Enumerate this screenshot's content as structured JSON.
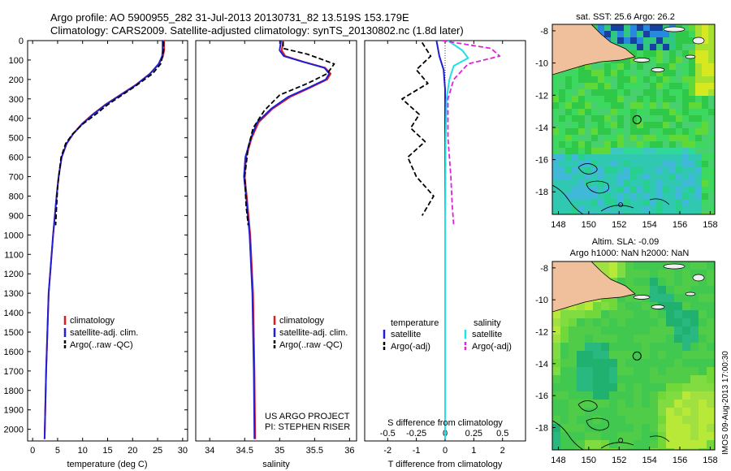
{
  "title": {
    "line1": "Argo profile: AO 5900955_282 31-Jul-2013 20130731_82 13.519S 153.179E",
    "line2": "Climatology: CARS2009. Satellite-adjusted climatology: synTS_20130802.nc (1.8d later)"
  },
  "colors": {
    "climatology": "#e41a1c",
    "satellite": "#1f1fd6",
    "argo": "#000000",
    "salinity_sat": "#22e0e6",
    "salinity_argo": "#e020e0"
  },
  "depth_axis": {
    "ticks": [
      0,
      100,
      200,
      300,
      400,
      500,
      600,
      700,
      800,
      900,
      1000,
      1100,
      1200,
      1300,
      1400,
      1500,
      1600,
      1700,
      1800,
      1900,
      2000
    ],
    "range": [
      0,
      2060
    ],
    "reversed": true
  },
  "chart_data": [
    {
      "type": "line",
      "panel": "temperature",
      "xlabel": "temperature (deg C)",
      "xlim": [
        -1,
        31
      ],
      "xticks": [
        0,
        5,
        10,
        15,
        20,
        25,
        30
      ],
      "ylim": [
        2060,
        0
      ],
      "legend": [
        "climatology",
        "satellite-adj. clim.",
        "Argo(..raw -QC)"
      ],
      "series": [
        {
          "name": "climatology",
          "x": [
            26.3,
            26.3,
            26.1,
            25.3,
            23.5,
            20.5,
            17.5,
            14.5,
            12.0,
            9.8,
            8.1,
            6.8,
            5.8,
            5.2,
            4.8,
            4.1,
            3.2,
            2.7,
            2.4
          ],
          "y": [
            0,
            50,
            80,
            120,
            170,
            230,
            280,
            330,
            380,
            430,
            480,
            530,
            600,
            700,
            800,
            1000,
            1300,
            1700,
            2050
          ]
        },
        {
          "name": "satellite-adj. clim.",
          "x": [
            26.0,
            26.0,
            25.9,
            25.2,
            23.5,
            20.6,
            17.6,
            14.6,
            12.1,
            9.9,
            8.1,
            6.8,
            5.8,
            5.2,
            4.8,
            4.1,
            3.2,
            2.7,
            2.4
          ],
          "y": [
            0,
            50,
            80,
            120,
            170,
            230,
            280,
            330,
            380,
            430,
            480,
            530,
            600,
            700,
            800,
            1000,
            1300,
            1700,
            2050
          ]
        },
        {
          "name": "Argo(..raw -QC)",
          "x": [
            26.2,
            26.2,
            26.0,
            25.6,
            24.0,
            20.8,
            17.9,
            15.0,
            12.6,
            10.0,
            8.0,
            6.6,
            5.7,
            5.0,
            4.6
          ],
          "y": [
            5,
            50,
            80,
            120,
            170,
            230,
            280,
            330,
            380,
            430,
            480,
            530,
            600,
            750,
            950
          ]
        }
      ]
    },
    {
      "type": "line",
      "panel": "salinity",
      "xlabel": "salinity",
      "xlim": [
        33.8,
        36.1
      ],
      "xticks": [
        34,
        34.5,
        35,
        35.5,
        36
      ],
      "ylim": [
        2060,
        0
      ],
      "legend": [
        "climatology",
        "satellite-adj. clim.",
        "Argo(..raw -QC)"
      ],
      "series": [
        {
          "name": "climatology",
          "x": [
            35.05,
            35.03,
            35.08,
            35.35,
            35.65,
            35.73,
            35.68,
            35.45,
            35.15,
            34.9,
            34.7,
            34.6,
            34.52,
            34.5,
            34.53,
            34.58,
            34.62,
            34.64,
            34.65
          ],
          "y": [
            0,
            50,
            80,
            110,
            140,
            170,
            200,
            240,
            290,
            350,
            420,
            500,
            600,
            700,
            800,
            1000,
            1300,
            1700,
            2050
          ]
        },
        {
          "name": "satellite-adj. clim.",
          "x": [
            35.02,
            35.0,
            35.06,
            35.34,
            35.64,
            35.71,
            35.66,
            35.43,
            35.12,
            34.88,
            34.68,
            34.59,
            34.51,
            34.49,
            34.52,
            34.57,
            34.61,
            34.63,
            34.64
          ],
          "y": [
            0,
            50,
            80,
            110,
            140,
            170,
            200,
            240,
            290,
            350,
            420,
            500,
            600,
            700,
            800,
            1000,
            1300,
            1700,
            2050
          ]
        },
        {
          "name": "Argo(..raw -QC)",
          "x": [
            35.05,
            35.05,
            35.4,
            35.55,
            35.78,
            35.68,
            35.4,
            35.0,
            34.78,
            34.62,
            34.55,
            34.5,
            34.52,
            34.55
          ],
          "y": [
            5,
            40,
            70,
            90,
            120,
            170,
            220,
            280,
            360,
            450,
            550,
            700,
            850,
            950
          ]
        }
      ]
    },
    {
      "type": "line",
      "panel": "difference",
      "xlabel": "T difference from climatology",
      "x2label": "S difference from climatology",
      "xlim": [
        -2.8,
        2.8
      ],
      "xticks": [
        -2,
        -1,
        0,
        1,
        2
      ],
      "xticks_labels": [
        "-2",
        "-1",
        "0",
        "1",
        "2"
      ],
      "x2ticks": [
        -0.5,
        -0.25,
        0,
        0.25,
        0.5
      ],
      "x2ticks_labels": [
        "-0.5",
        "-0.25",
        "0",
        "0.25",
        "0.5"
      ],
      "ylim": [
        2060,
        0
      ],
      "legend_header": [
        "temperature",
        "salinity"
      ],
      "legend": [
        "satellite",
        "Argo(-adj)",
        "satellite",
        "Argo(-adj)"
      ],
      "series": [
        {
          "name": "satellite",
          "quantity": "temperature",
          "x": [
            -0.3,
            -0.2,
            -0.05,
            0.0,
            0.0,
            0.0
          ],
          "y": [
            0,
            80,
            150,
            250,
            600,
            2050
          ]
        },
        {
          "name": "Argo(-adj)",
          "quantity": "temperature",
          "x": [
            -0.8,
            -0.5,
            -1.0,
            -0.6,
            -1.5,
            -0.9,
            -1.2,
            -0.7,
            -1.3,
            -1.0,
            -0.4,
            -0.8
          ],
          "y": [
            10,
            80,
            150,
            220,
            300,
            380,
            450,
            520,
            600,
            700,
            800,
            900
          ]
        },
        {
          "name": "satellite",
          "quantity": "salinity",
          "x": [
            0.1,
            0.6,
            0.8,
            0.3,
            0.15,
            0.05,
            0.02,
            0.0,
            0.0
          ],
          "y": [
            0,
            50,
            90,
            130,
            200,
            300,
            500,
            900,
            2050
          ]
        },
        {
          "name": "Argo(-adj)",
          "quantity": "salinity",
          "x": [
            -0.1,
            1.6,
            1.9,
            0.8,
            0.3,
            0.1,
            0.1,
            0.2,
            0.25,
            0.3
          ],
          "y": [
            0,
            40,
            80,
            120,
            200,
            300,
            500,
            700,
            850,
            950
          ]
        }
      ]
    },
    {
      "type": "heatmap",
      "panel": "map-sst",
      "title": "sat. SST: 25.6  Argo: 26.2",
      "xticks": [
        148,
        150,
        152,
        154,
        156,
        158
      ],
      "yticks": [
        -8,
        -10,
        -12,
        -14,
        -16,
        -18
      ],
      "xlim": [
        147.6,
        158.3
      ],
      "ylim": [
        -19.4,
        -7.6
      ],
      "profile_location": {
        "lon": 153.179,
        "lat": -13.519
      }
    },
    {
      "type": "heatmap",
      "panel": "map-sla",
      "title": "Altim. SLA: -0.09",
      "subtitle": "Argo h1000: NaN h2000: NaN",
      "xticks": [
        148,
        150,
        152,
        154,
        156,
        158
      ],
      "yticks": [
        -8,
        -10,
        -12,
        -14,
        -16,
        -18
      ],
      "xlim": [
        147.6,
        158.3
      ],
      "ylim": [
        -19.4,
        -7.6
      ],
      "profile_location": {
        "lon": 153.179,
        "lat": -13.519
      }
    }
  ],
  "annotations": {
    "project": "US ARGO PROJECT",
    "pi": "PI: STEPHEN RISER",
    "timestamp": "IMOS 09-Aug-2013 17:00:30"
  }
}
